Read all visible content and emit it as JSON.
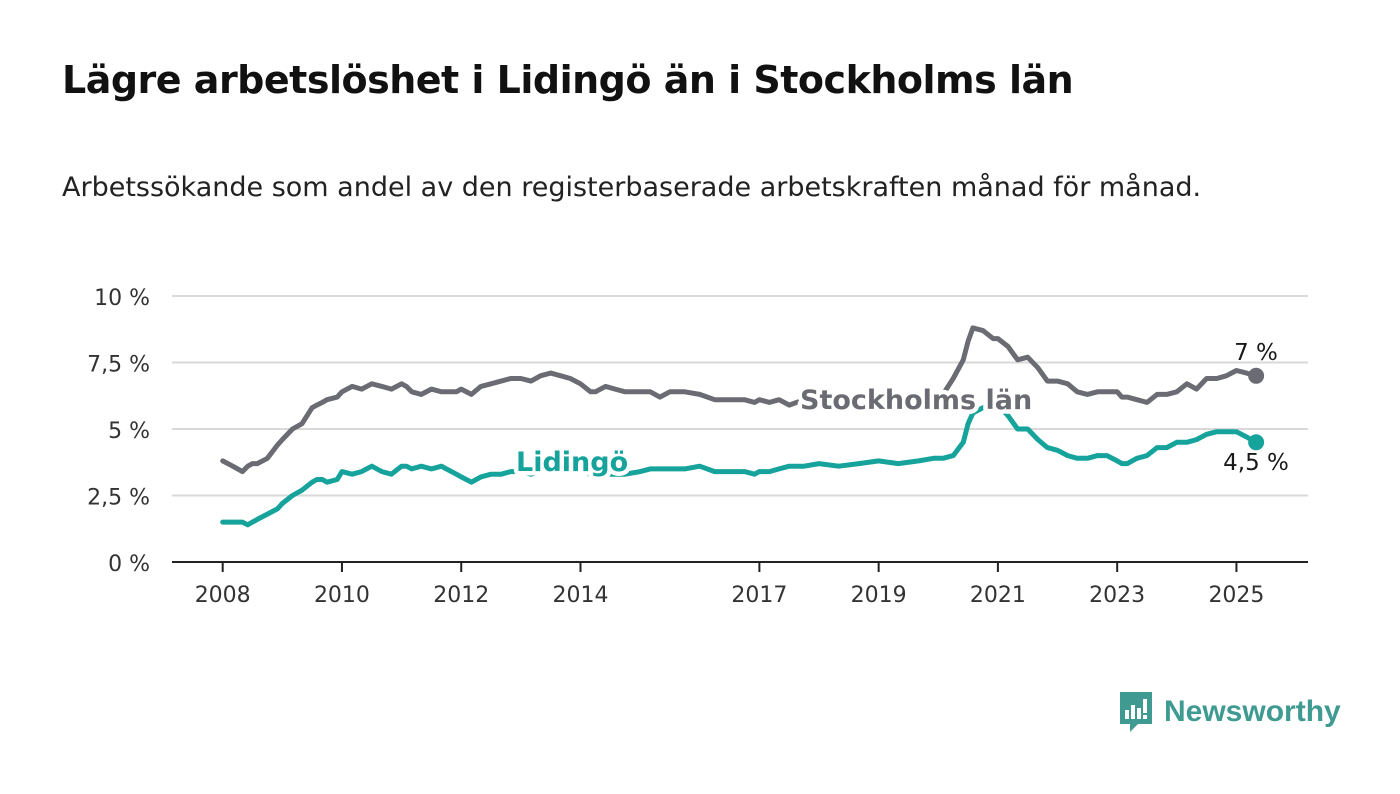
{
  "title": "Lägre arbetslöshet i Lidingö än i Stockholms län",
  "subtitle": "Arbetssökande som andel av den registerbaserade arbetskraften månad för månad.",
  "brand": {
    "name": "Newsworthy",
    "icon": "bar-chart-speech-bubble-icon",
    "color": "#3f9a92"
  },
  "chart_data": {
    "type": "line",
    "y_ticks": [
      {
        "value": 0,
        "label": "0 %"
      },
      {
        "value": 2.5,
        "label": "2,5 %"
      },
      {
        "value": 5,
        "label": "5 %"
      },
      {
        "value": 7.5,
        "label": "7,5 %"
      },
      {
        "value": 10,
        "label": "10 %"
      }
    ],
    "x_ticks": [
      {
        "value": 2008,
        "label": "2008"
      },
      {
        "value": 2010,
        "label": "2010"
      },
      {
        "value": 2012,
        "label": "2012"
      },
      {
        "value": 2014,
        "label": "2014"
      },
      {
        "value": 2017,
        "label": "2017"
      },
      {
        "value": 2019,
        "label": "2019"
      },
      {
        "value": 2021,
        "label": "2021"
      },
      {
        "value": 2023,
        "label": "2023"
      },
      {
        "value": 2025,
        "label": "2025"
      }
    ],
    "xlim": [
      2007.15,
      2026.2
    ],
    "ylim": [
      0,
      10
    ],
    "grid": true,
    "series": [
      {
        "name": "Stockholms län",
        "color": "#6b6b73",
        "end_label": "7 %",
        "x": [
          2008.0,
          2008.17,
          2008.33,
          2008.42,
          2008.5,
          2008.58,
          2008.75,
          2008.92,
          2009.0,
          2009.17,
          2009.33,
          2009.5,
          2009.58,
          2009.67,
          2009.75,
          2009.92,
          2010.0,
          2010.17,
          2010.33,
          2010.5,
          2010.67,
          2010.83,
          2011.0,
          2011.08,
          2011.17,
          2011.33,
          2011.5,
          2011.67,
          2011.75,
          2011.92,
          2012.0,
          2012.17,
          2012.33,
          2012.5,
          2012.67,
          2012.83,
          2013.0,
          2013.17,
          2013.33,
          2013.5,
          2013.67,
          2013.83,
          2014.0,
          2014.17,
          2014.25,
          2014.42,
          2014.58,
          2014.75,
          2015.0,
          2015.17,
          2015.33,
          2015.5,
          2015.75,
          2016.0,
          2016.25,
          2016.5,
          2016.75,
          2016.92,
          2017.0,
          2017.17,
          2017.33,
          2017.5,
          2017.75,
          2018.0,
          2018.33,
          2018.67,
          2019.0,
          2019.33,
          2019.67,
          2019.92,
          2020.08,
          2020.25,
          2020.42,
          2020.5,
          2020.58,
          2020.75,
          2020.92,
          2021.0,
          2021.17,
          2021.33,
          2021.5,
          2021.67,
          2021.83,
          2022.0,
          2022.17,
          2022.33,
          2022.5,
          2022.67,
          2022.83,
          2023.0,
          2023.08,
          2023.17,
          2023.33,
          2023.5,
          2023.67,
          2023.83,
          2024.0,
          2024.17,
          2024.33,
          2024.5,
          2024.67,
          2024.83,
          2025.0,
          2025.17,
          2025.33
        ],
        "y": [
          3.8,
          3.6,
          3.4,
          3.6,
          3.7,
          3.7,
          3.9,
          4.4,
          4.6,
          5.0,
          5.2,
          5.8,
          5.9,
          6.0,
          6.1,
          6.2,
          6.4,
          6.6,
          6.5,
          6.7,
          6.6,
          6.5,
          6.7,
          6.6,
          6.4,
          6.3,
          6.5,
          6.4,
          6.4,
          6.4,
          6.5,
          6.3,
          6.6,
          6.7,
          6.8,
          6.9,
          6.9,
          6.8,
          7.0,
          7.1,
          7.0,
          6.9,
          6.7,
          6.4,
          6.4,
          6.6,
          6.5,
          6.4,
          6.4,
          6.4,
          6.2,
          6.4,
          6.4,
          6.3,
          6.1,
          6.1,
          6.1,
          6.0,
          6.1,
          6.0,
          6.1,
          5.9,
          6.1,
          6.1,
          6.2,
          6.3,
          6.2,
          6.2,
          6.1,
          6.2,
          6.3,
          6.9,
          7.6,
          8.3,
          8.8,
          8.7,
          8.4,
          8.4,
          8.1,
          7.6,
          7.7,
          7.3,
          6.8,
          6.8,
          6.7,
          6.4,
          6.3,
          6.4,
          6.4,
          6.4,
          6.2,
          6.2,
          6.1,
          6.0,
          6.3,
          6.3,
          6.4,
          6.7,
          6.5,
          6.9,
          6.9,
          7.0,
          7.2,
          7.1,
          7.0
        ]
      },
      {
        "name": "Lidingö",
        "color": "#16a39b",
        "end_label": "4,5 %",
        "x": [
          2008.0,
          2008.17,
          2008.33,
          2008.42,
          2008.5,
          2008.58,
          2008.75,
          2008.92,
          2009.0,
          2009.17,
          2009.33,
          2009.5,
          2009.58,
          2009.67,
          2009.75,
          2009.92,
          2010.0,
          2010.17,
          2010.33,
          2010.5,
          2010.67,
          2010.83,
          2011.0,
          2011.08,
          2011.17,
          2011.33,
          2011.5,
          2011.67,
          2011.75,
          2011.92,
          2012.0,
          2012.17,
          2012.33,
          2012.5,
          2012.67,
          2012.83,
          2013.0,
          2013.17,
          2013.33,
          2013.5,
          2013.67,
          2013.83,
          2014.0,
          2014.17,
          2014.25,
          2014.42,
          2014.58,
          2014.75,
          2015.0,
          2015.17,
          2015.33,
          2015.5,
          2015.75,
          2016.0,
          2016.25,
          2016.5,
          2016.75,
          2016.92,
          2017.0,
          2017.17,
          2017.33,
          2017.5,
          2017.75,
          2018.0,
          2018.33,
          2018.67,
          2019.0,
          2019.33,
          2019.67,
          2019.92,
          2020.08,
          2020.25,
          2020.42,
          2020.5,
          2020.58,
          2020.75,
          2020.92,
          2021.0,
          2021.17,
          2021.33,
          2021.5,
          2021.67,
          2021.83,
          2022.0,
          2022.17,
          2022.33,
          2022.5,
          2022.67,
          2022.83,
          2023.0,
          2023.08,
          2023.17,
          2023.33,
          2023.5,
          2023.67,
          2023.83,
          2024.0,
          2024.17,
          2024.33,
          2024.5,
          2024.67,
          2024.83,
          2025.0,
          2025.17,
          2025.33
        ],
        "y": [
          1.5,
          1.5,
          1.5,
          1.4,
          1.5,
          1.6,
          1.8,
          2.0,
          2.2,
          2.5,
          2.7,
          3.0,
          3.1,
          3.1,
          3.0,
          3.1,
          3.4,
          3.3,
          3.4,
          3.6,
          3.4,
          3.3,
          3.6,
          3.6,
          3.5,
          3.6,
          3.5,
          3.6,
          3.5,
          3.3,
          3.2,
          3.0,
          3.2,
          3.3,
          3.3,
          3.4,
          3.4,
          3.3,
          3.4,
          3.5,
          3.4,
          3.4,
          3.4,
          3.3,
          3.3,
          3.3,
          3.3,
          3.3,
          3.4,
          3.5,
          3.5,
          3.5,
          3.5,
          3.6,
          3.4,
          3.4,
          3.4,
          3.3,
          3.4,
          3.4,
          3.5,
          3.6,
          3.6,
          3.7,
          3.6,
          3.7,
          3.8,
          3.7,
          3.8,
          3.9,
          3.9,
          4.0,
          4.5,
          5.2,
          5.6,
          5.8,
          5.9,
          5.9,
          5.5,
          5.0,
          5.0,
          4.6,
          4.3,
          4.2,
          4.0,
          3.9,
          3.9,
          4.0,
          4.0,
          3.8,
          3.7,
          3.7,
          3.9,
          4.0,
          4.3,
          4.3,
          4.5,
          4.5,
          4.6,
          4.8,
          4.9,
          4.9,
          4.9,
          4.7,
          4.5
        ]
      }
    ]
  }
}
